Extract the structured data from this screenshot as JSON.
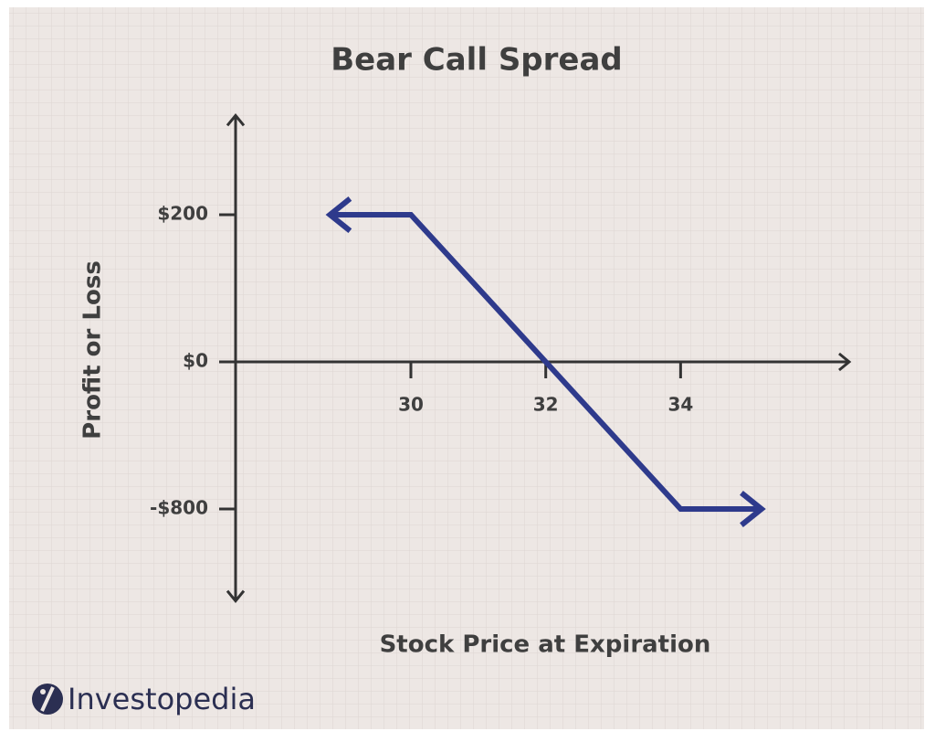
{
  "chart_data": {
    "type": "line",
    "title": "Bear Call Spread",
    "x_label": "Stock Price at Expiration",
    "y_label": "Profit or Loss",
    "x": [
      28.8,
      30,
      32,
      34,
      35.2
    ],
    "series": [
      {
        "name": "Bear Call Spread",
        "color": "#2e3a8c",
        "values": [
          200,
          200,
          0,
          -800,
          -800
        ]
      }
    ],
    "xlim": [
      27.4,
      36.5
    ],
    "xticks": [
      30,
      32,
      34
    ],
    "ylim": [
      -1300,
      335
    ],
    "yticks": [
      {
        "value": 200,
        "label": "$200"
      },
      {
        "value": 0,
        "label": "$0"
      },
      {
        "value": -800,
        "label": "-$800"
      }
    ],
    "credit": "Investopedia"
  }
}
